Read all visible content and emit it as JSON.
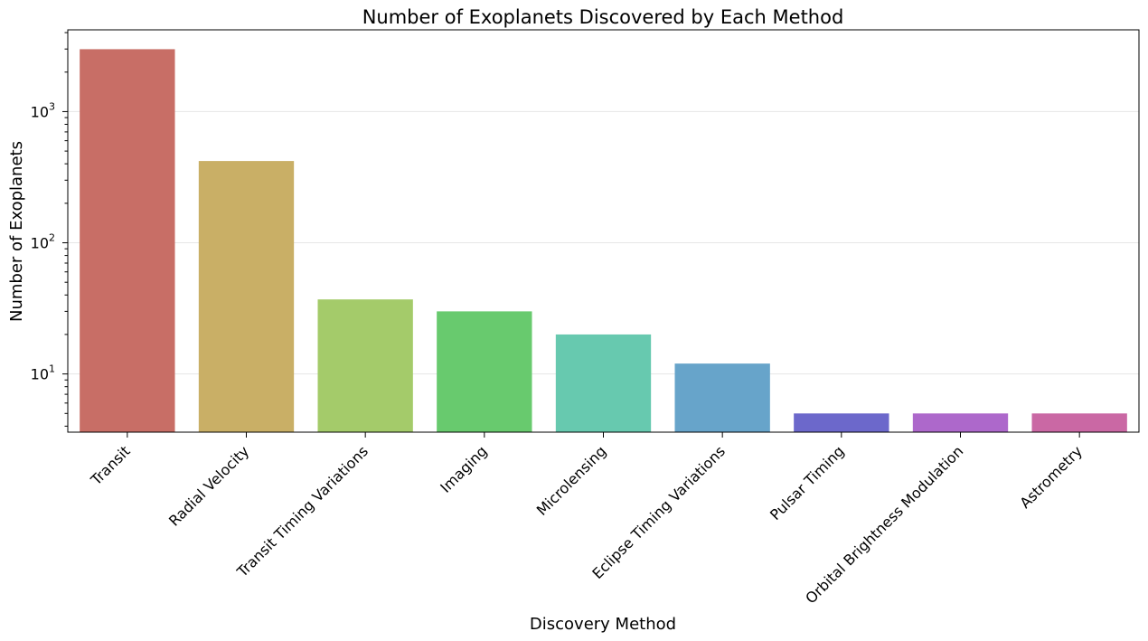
{
  "chart_data": {
    "type": "bar",
    "title": "Number of Exoplanets Discovered by Each Method",
    "xlabel": "Discovery Method",
    "ylabel": "Number of Exoplanets",
    "yscale": "log",
    "ylim": [
      3.6,
      4200
    ],
    "grid": "horizontal",
    "y_ticks": [
      {
        "value": 10,
        "base": "10",
        "exp": "1"
      },
      {
        "value": 100,
        "base": "10",
        "exp": "2"
      },
      {
        "value": 1000,
        "base": "10",
        "exp": "3"
      }
    ],
    "categories": [
      "Transit",
      "Radial Velocity",
      "Transit Timing Variations",
      "Imaging",
      "Microlensing",
      "Eclipse Timing Variations",
      "Pulsar Timing",
      "Orbital Brightness Modulation",
      "Astrometry"
    ],
    "values": [
      2990,
      420,
      37,
      30,
      20,
      12,
      5,
      5,
      5
    ],
    "colors": [
      "#c86e66",
      "#c9af66",
      "#a4cb6a",
      "#68ca6e",
      "#67c9af",
      "#67a4ca",
      "#6c68cb",
      "#ad68cb",
      "#ca68a4"
    ]
  }
}
